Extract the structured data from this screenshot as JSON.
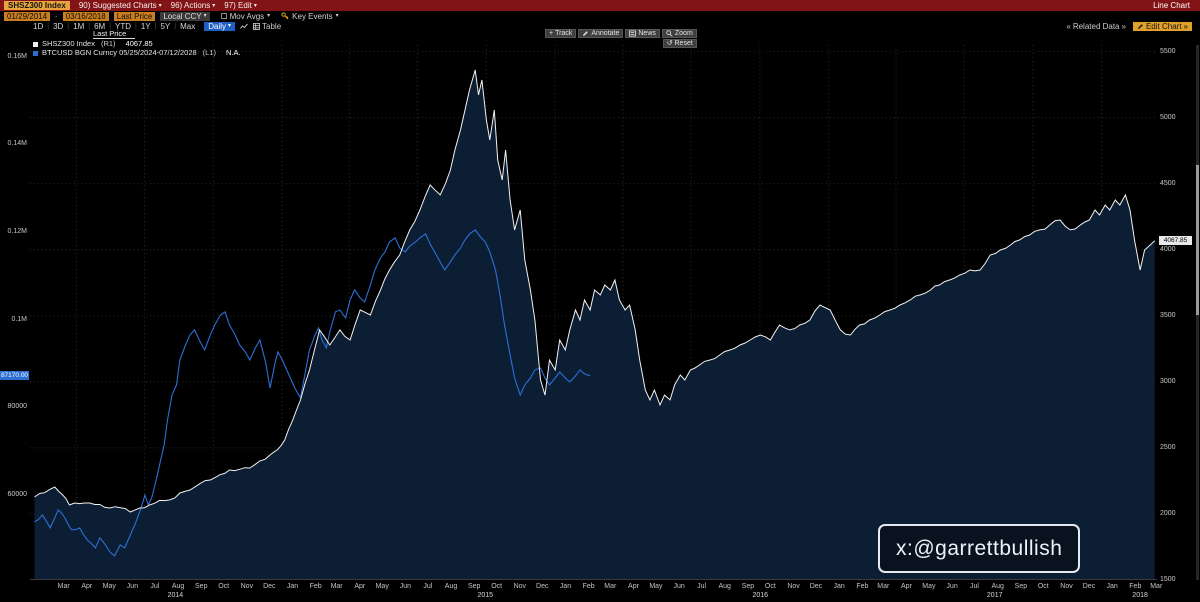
{
  "title_bar": {
    "security": "SHSZ300 Index",
    "menus": [
      {
        "label": "90) Suggested Charts"
      },
      {
        "label": "96) Actions"
      },
      {
        "label": "97) Edit"
      }
    ],
    "right_label": "Line Chart"
  },
  "toolbar": {
    "date_from": "01/29/2014",
    "date_to": "03/16/2018",
    "field": "Last Price",
    "currency": "Local CCY",
    "mov_avgs": "Mov Avgs",
    "key_events": "Key Events"
  },
  "range_bar": {
    "ranges": [
      "1D",
      "3D",
      "1M",
      "6M",
      "YTD",
      "1Y",
      "5Y",
      "Max"
    ],
    "frequency": "Daily",
    "table_label": "Table",
    "related_data": "Related Data",
    "edit_chart": "Edit Chart"
  },
  "chart_controls": {
    "track": "Track",
    "annotate": "Annotate",
    "news": "News",
    "zoom": "Zoom",
    "reset": "Reset"
  },
  "legend": {
    "title": "Last Price",
    "series": [
      {
        "name": "SHSZ300 Index",
        "axis": "(R1)",
        "value": "4067.85",
        "color": "#f2f2f2"
      },
      {
        "name": "BTCUSD BGN Curncy 05/25/2024-07/12/2028",
        "axis": "(L1)",
        "value": "N.A.",
        "color": "#2e6fd6"
      }
    ]
  },
  "badges": {
    "left_last": "87170.00",
    "right_last": "4067.85"
  },
  "watermark": "x:@garrettbullish",
  "icons": {
    "dropdown": "▾",
    "double_chevron_left": "«",
    "double_chevron_right": "»"
  },
  "colors": {
    "header_red": "#821316",
    "amber": "#e8a33d",
    "accent_blue": "#1e5fc4",
    "grid": "#2d2d2d"
  },
  "chart_data": {
    "type": "line",
    "x_range": [
      "01/29/2014",
      "03/16/2018"
    ],
    "month_names": [
      "Jan",
      "Feb",
      "Mar",
      "Apr",
      "May",
      "Jun",
      "Jul",
      "Aug",
      "Sep",
      "Oct",
      "Nov",
      "Dec"
    ],
    "year_labels": [
      {
        "label": "2014",
        "x": 0.129
      },
      {
        "label": "2015",
        "x": 0.404
      },
      {
        "label": "2016",
        "x": 0.648
      },
      {
        "label": "2017",
        "x": 0.856
      },
      {
        "label": "2018",
        "x": 0.985
      }
    ],
    "grid_color": "#2d2d2d",
    "right_axis": {
      "domain": [
        1500,
        5550
      ],
      "ticks": [
        [
          1500,
          "1500"
        ],
        [
          2000,
          "2000"
        ],
        [
          2500,
          "2500"
        ],
        [
          3000,
          "3000"
        ],
        [
          3500,
          "3500"
        ],
        [
          4000,
          "4000"
        ],
        [
          4500,
          "4500"
        ],
        [
          5000,
          "5000"
        ],
        [
          5500,
          "5500"
        ]
      ]
    },
    "left_axis": {
      "domain": [
        40600,
        162700
      ],
      "ticks": [
        [
          60000,
          "60000"
        ],
        [
          80000,
          "80000"
        ],
        [
          100000,
          "0.1M"
        ],
        [
          120000,
          "0.12M"
        ],
        [
          140000,
          "0.14M"
        ],
        [
          160000,
          "0.16M"
        ]
      ]
    },
    "series": [
      {
        "id": "shsz300",
        "name": "SHSZ300 Index",
        "axis": "right",
        "color": "#f2f2f2",
        "width": 1,
        "fill": "#0c2036",
        "fill_opacity": 0.95,
        "jitter": 6,
        "points": [
          [
            0.004,
            2128
          ],
          [
            0.022,
            2204
          ],
          [
            0.035,
            2068
          ],
          [
            0.053,
            2083
          ],
          [
            0.071,
            2045
          ],
          [
            0.089,
            2015
          ],
          [
            0.106,
            2068
          ],
          [
            0.124,
            2106
          ],
          [
            0.142,
            2181
          ],
          [
            0.16,
            2257
          ],
          [
            0.177,
            2333
          ],
          [
            0.195,
            2348
          ],
          [
            0.213,
            2447
          ],
          [
            0.226,
            2560
          ],
          [
            0.24,
            2863
          ],
          [
            0.248,
            3090
          ],
          [
            0.257,
            3393
          ],
          [
            0.266,
            3279
          ],
          [
            0.275,
            3393
          ],
          [
            0.284,
            3317
          ],
          [
            0.293,
            3544
          ],
          [
            0.302,
            3506
          ],
          [
            0.311,
            3695
          ],
          [
            0.319,
            3847
          ],
          [
            0.328,
            3960
          ],
          [
            0.337,
            4150
          ],
          [
            0.346,
            4301
          ],
          [
            0.355,
            4490
          ],
          [
            0.364,
            4415
          ],
          [
            0.373,
            4604
          ],
          [
            0.377,
            4755
          ],
          [
            0.382,
            4907
          ],
          [
            0.386,
            5058
          ],
          [
            0.39,
            5209
          ],
          [
            0.395,
            5361
          ],
          [
            0.398,
            5172
          ],
          [
            0.401,
            5285
          ],
          [
            0.405,
            4982
          ],
          [
            0.408,
            4831
          ],
          [
            0.412,
            5058
          ],
          [
            0.415,
            4680
          ],
          [
            0.419,
            4528
          ],
          [
            0.422,
            4755
          ],
          [
            0.426,
            4377
          ],
          [
            0.43,
            4150
          ],
          [
            0.435,
            4301
          ],
          [
            0.439,
            3922
          ],
          [
            0.444,
            3695
          ],
          [
            0.448,
            3468
          ],
          [
            0.453,
            3014
          ],
          [
            0.457,
            2900
          ],
          [
            0.461,
            3165
          ],
          [
            0.466,
            3090
          ],
          [
            0.47,
            3317
          ],
          [
            0.475,
            3241
          ],
          [
            0.479,
            3393
          ],
          [
            0.484,
            3544
          ],
          [
            0.488,
            3468
          ],
          [
            0.492,
            3620
          ],
          [
            0.497,
            3544
          ],
          [
            0.501,
            3695
          ],
          [
            0.506,
            3658
          ],
          [
            0.51,
            3733
          ],
          [
            0.515,
            3695
          ],
          [
            0.519,
            3771
          ],
          [
            0.523,
            3620
          ],
          [
            0.528,
            3544
          ],
          [
            0.532,
            3582
          ],
          [
            0.537,
            3393
          ],
          [
            0.541,
            3165
          ],
          [
            0.546,
            2938
          ],
          [
            0.55,
            2863
          ],
          [
            0.554,
            2938
          ],
          [
            0.559,
            2825
          ],
          [
            0.563,
            2900
          ],
          [
            0.568,
            2863
          ],
          [
            0.572,
            2976
          ],
          [
            0.577,
            3052
          ],
          [
            0.581,
            3014
          ],
          [
            0.586,
            3090
          ],
          [
            0.594,
            3127
          ],
          [
            0.603,
            3165
          ],
          [
            0.612,
            3203
          ],
          [
            0.621,
            3241
          ],
          [
            0.63,
            3279
          ],
          [
            0.639,
            3317
          ],
          [
            0.648,
            3355
          ],
          [
            0.657,
            3317
          ],
          [
            0.665,
            3430
          ],
          [
            0.674,
            3393
          ],
          [
            0.683,
            3430
          ],
          [
            0.692,
            3468
          ],
          [
            0.701,
            3582
          ],
          [
            0.71,
            3544
          ],
          [
            0.719,
            3393
          ],
          [
            0.728,
            3355
          ],
          [
            0.736,
            3430
          ],
          [
            0.745,
            3468
          ],
          [
            0.754,
            3506
          ],
          [
            0.763,
            3544
          ],
          [
            0.772,
            3582
          ],
          [
            0.781,
            3620
          ],
          [
            0.79,
            3658
          ],
          [
            0.799,
            3695
          ],
          [
            0.807,
            3733
          ],
          [
            0.816,
            3771
          ],
          [
            0.825,
            3809
          ],
          [
            0.834,
            3847
          ],
          [
            0.843,
            3847
          ],
          [
            0.852,
            3960
          ],
          [
            0.861,
            3998
          ],
          [
            0.87,
            4036
          ],
          [
            0.878,
            4074
          ],
          [
            0.887,
            4112
          ],
          [
            0.896,
            4150
          ],
          [
            0.905,
            4188
          ],
          [
            0.914,
            4225
          ],
          [
            0.923,
            4150
          ],
          [
            0.932,
            4188
          ],
          [
            0.94,
            4225
          ],
          [
            0.945,
            4301
          ],
          [
            0.949,
            4263
          ],
          [
            0.954,
            4339
          ],
          [
            0.958,
            4301
          ],
          [
            0.963,
            4377
          ],
          [
            0.967,
            4339
          ],
          [
            0.972,
            4415
          ],
          [
            0.976,
            4301
          ],
          [
            0.98,
            4074
          ],
          [
            0.985,
            3847
          ],
          [
            0.989,
            3998
          ],
          [
            0.994,
            4036
          ],
          [
            0.998,
            4068
          ]
        ]
      },
      {
        "id": "btcusd",
        "name": "BTCUSD BGN Curncy",
        "axis": "left",
        "color": "#2e6fd6",
        "width": 1.1,
        "jitter": 7,
        "points": [
          [
            0.004,
            53850
          ],
          [
            0.011,
            55450
          ],
          [
            0.018,
            52480
          ],
          [
            0.025,
            56590
          ],
          [
            0.031,
            54760
          ],
          [
            0.037,
            52030
          ],
          [
            0.044,
            52480
          ],
          [
            0.051,
            49740
          ],
          [
            0.058,
            47920
          ],
          [
            0.062,
            50200
          ],
          [
            0.067,
            48600
          ],
          [
            0.071,
            47005
          ],
          [
            0.075,
            46090
          ],
          [
            0.08,
            48600
          ],
          [
            0.084,
            47920
          ],
          [
            0.089,
            50880
          ],
          [
            0.093,
            53170
          ],
          [
            0.098,
            56590
          ],
          [
            0.102,
            60010
          ],
          [
            0.105,
            57730
          ],
          [
            0.108,
            59330
          ],
          [
            0.112,
            63440
          ],
          [
            0.115,
            66860
          ],
          [
            0.119,
            71420
          ],
          [
            0.122,
            77130
          ],
          [
            0.126,
            82830
          ],
          [
            0.13,
            85120
          ],
          [
            0.133,
            90820
          ],
          [
            0.138,
            94250
          ],
          [
            0.142,
            96530
          ],
          [
            0.146,
            97670
          ],
          [
            0.151,
            94930
          ],
          [
            0.155,
            93100
          ],
          [
            0.16,
            96530
          ],
          [
            0.164,
            98810
          ],
          [
            0.169,
            101090
          ],
          [
            0.173,
            101780
          ],
          [
            0.177,
            98810
          ],
          [
            0.182,
            96530
          ],
          [
            0.186,
            94250
          ],
          [
            0.191,
            92650
          ],
          [
            0.195,
            90820
          ],
          [
            0.2,
            93560
          ],
          [
            0.204,
            95390
          ],
          [
            0.209,
            90370
          ],
          [
            0.213,
            84430
          ],
          [
            0.217,
            89680
          ],
          [
            0.22,
            92650
          ],
          [
            0.224,
            90820
          ],
          [
            0.227,
            89000
          ],
          [
            0.231,
            86710
          ],
          [
            0.235,
            84430
          ],
          [
            0.24,
            82150
          ],
          [
            0.244,
            87630
          ],
          [
            0.248,
            93100
          ],
          [
            0.253,
            96530
          ],
          [
            0.256,
            98130
          ],
          [
            0.259,
            95390
          ],
          [
            0.263,
            93560
          ],
          [
            0.266,
            97210
          ],
          [
            0.271,
            101780
          ],
          [
            0.275,
            102230
          ],
          [
            0.28,
            100410
          ],
          [
            0.284,
            104520
          ],
          [
            0.288,
            106800
          ],
          [
            0.293,
            104970
          ],
          [
            0.297,
            104060
          ],
          [
            0.302,
            107940
          ],
          [
            0.306,
            111360
          ],
          [
            0.311,
            114100
          ],
          [
            0.315,
            115470
          ],
          [
            0.319,
            117750
          ],
          [
            0.324,
            118670
          ],
          [
            0.328,
            116380
          ],
          [
            0.333,
            115470
          ],
          [
            0.337,
            116840
          ],
          [
            0.342,
            117750
          ],
          [
            0.346,
            118670
          ],
          [
            0.351,
            119580
          ],
          [
            0.355,
            117300
          ],
          [
            0.359,
            115470
          ],
          [
            0.364,
            113190
          ],
          [
            0.368,
            111360
          ],
          [
            0.373,
            113190
          ],
          [
            0.377,
            114790
          ],
          [
            0.382,
            116380
          ],
          [
            0.386,
            118210
          ],
          [
            0.39,
            119580
          ],
          [
            0.395,
            120500
          ],
          [
            0.399,
            119120
          ],
          [
            0.404,
            117750
          ],
          [
            0.408,
            115470
          ],
          [
            0.413,
            111360
          ],
          [
            0.417,
            105660
          ],
          [
            0.421,
            98810
          ],
          [
            0.426,
            91960
          ],
          [
            0.43,
            86710
          ],
          [
            0.435,
            82830
          ],
          [
            0.439,
            85120
          ],
          [
            0.444,
            86710
          ],
          [
            0.448,
            88540
          ],
          [
            0.453,
            89000
          ],
          [
            0.457,
            86710
          ],
          [
            0.461,
            85120
          ],
          [
            0.466,
            86710
          ],
          [
            0.47,
            88080
          ],
          [
            0.475,
            86710
          ],
          [
            0.479,
            85800
          ],
          [
            0.484,
            87170
          ],
          [
            0.488,
            88540
          ],
          [
            0.492,
            87630
          ],
          [
            0.497,
            87170
          ]
        ]
      }
    ]
  }
}
